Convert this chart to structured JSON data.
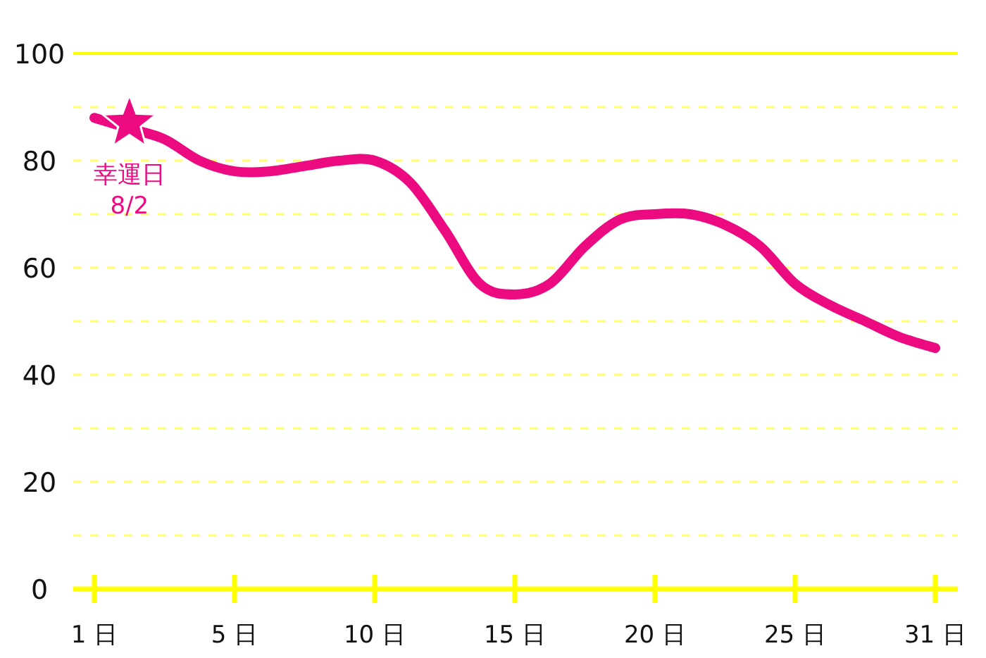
{
  "chart_data": {
    "type": "line",
    "categories": [
      "1 日",
      null,
      null,
      null,
      "5 日",
      null,
      null,
      null,
      "10 日",
      null,
      null,
      null,
      "15 日",
      null,
      null,
      null,
      "20 日",
      null,
      null,
      null,
      "25 日",
      null,
      null,
      null,
      "31 日"
    ],
    "series": [
      {
        "color": "#ec0a80",
        "values": [
          88,
          86,
          84,
          80,
          78,
          78,
          79,
          80,
          80,
          76,
          67,
          57,
          55,
          57,
          64,
          69,
          70,
          70,
          68,
          64,
          57,
          53,
          50,
          47,
          45
        ]
      },
      {
        "type": "scatter",
        "marker": "star",
        "color": "#ec0a80",
        "values": [
          null,
          87,
          null,
          null,
          null,
          null,
          null,
          null,
          null,
          null,
          null,
          null,
          null,
          null,
          null,
          null,
          null,
          null,
          null,
          null,
          null,
          null,
          null,
          null,
          null
        ]
      }
    ],
    "ylim": [
      0,
      100
    ],
    "yticks": [
      0,
      {
        "value": 10,
        "label": null
      },
      20,
      {
        "value": 30,
        "label": null
      },
      40,
      {
        "value": 50,
        "label": null
      },
      60,
      {
        "value": 70,
        "label": null
      },
      80,
      {
        "value": 90,
        "label": null
      },
      100
    ],
    "grid": "y",
    "annotations": [
      "幸運日\n8/2"
    ]
  }
}
